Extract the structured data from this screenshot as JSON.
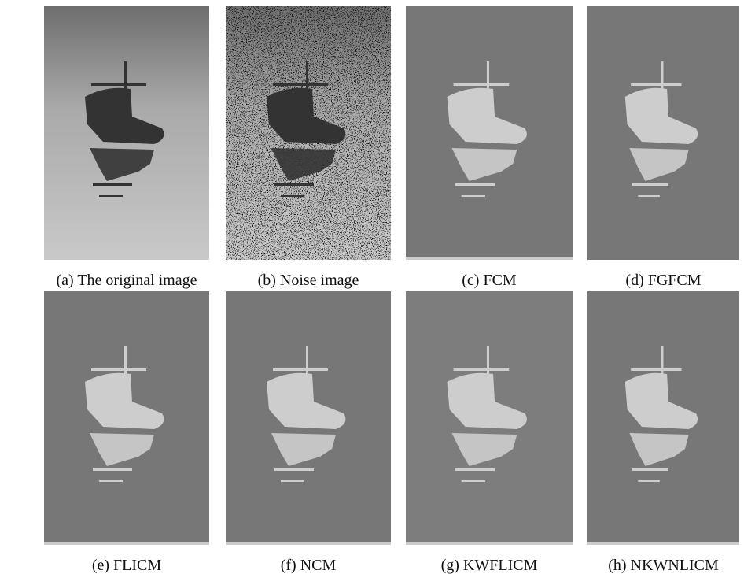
{
  "panels": [
    {
      "caption": "(a) The original image"
    },
    {
      "caption": "(b) Noise image"
    },
    {
      "caption": "(c) FCM"
    },
    {
      "caption": "(d) FGFCM"
    },
    {
      "caption": "(e) FLICM"
    },
    {
      "caption": "(f) NCM"
    },
    {
      "caption": "(g) KWFLICM"
    },
    {
      "caption": "(h) NKWNLICM"
    }
  ]
}
